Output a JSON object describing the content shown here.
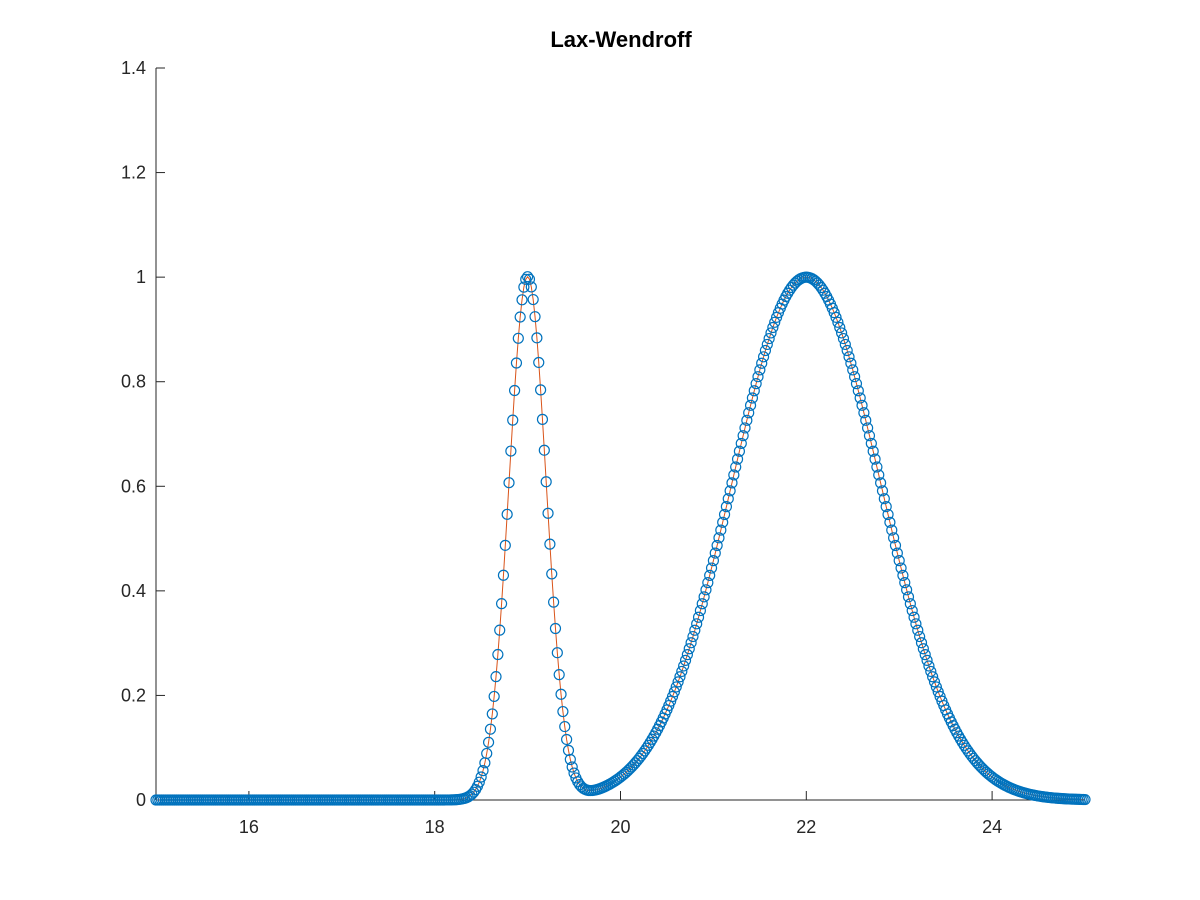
{
  "chart_data": {
    "type": "line",
    "title": "Lax-Wendroff",
    "xlabel": "",
    "ylabel": "",
    "xlim": [
      15,
      25
    ],
    "ylim": [
      0,
      1.4
    ],
    "x_ticks": [
      16,
      18,
      20,
      22,
      24
    ],
    "y_ticks": [
      0,
      0.2,
      0.4,
      0.6,
      0.8,
      1,
      1.2,
      1.4
    ],
    "x_tick_labels": [
      "16",
      "18",
      "20",
      "22",
      "24"
    ],
    "y_tick_labels": [
      "0",
      "0.2",
      "0.4",
      "0.6",
      "0.8",
      "1",
      "1.2",
      "1.4"
    ],
    "grid": false,
    "legend": "none",
    "series": [
      {
        "style": "line with circle markers",
        "line_color": "#D95319",
        "marker_color": "#0072BD",
        "x_start": 15,
        "x_end": 25,
        "x_step": 0.02,
        "components": [
          {
            "shape": "gaussian",
            "center": 19.0,
            "width": 0.2,
            "amplitude": 1.0
          },
          {
            "shape": "gaussian",
            "center": 22.0,
            "width": 0.8,
            "amplitude": 1.0
          }
        ]
      }
    ]
  }
}
